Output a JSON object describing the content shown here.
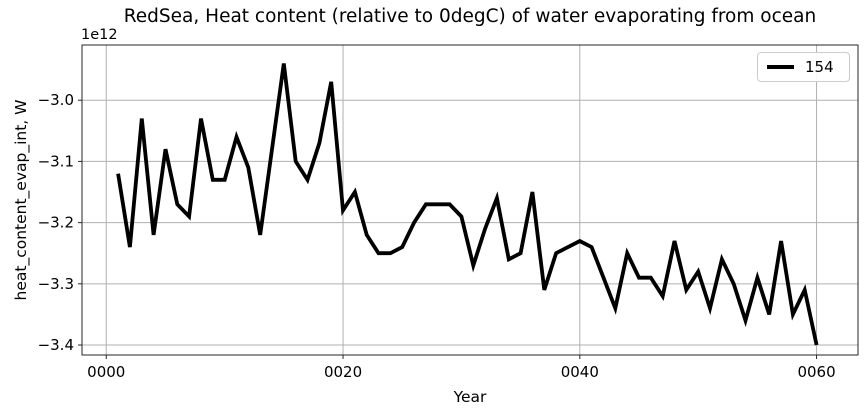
{
  "chart_data": {
    "type": "line",
    "title": "RedSea, Heat content (relative to 0degC) of water evaporating from ocean",
    "xlabel": "Year",
    "ylabel": "heat_content_evap_int, W",
    "offset_text": "1e12",
    "value_scale": "1e12",
    "grid": true,
    "legend": {
      "label": "154",
      "position": "upper right"
    },
    "line_color": "#000000",
    "grid_color": "#b0b0b0",
    "spine_color": "#262626",
    "x": [
      1,
      2,
      3,
      4,
      5,
      6,
      7,
      8,
      9,
      10,
      11,
      12,
      13,
      14,
      15,
      16,
      17,
      18,
      19,
      20,
      21,
      22,
      23,
      24,
      25,
      26,
      27,
      28,
      29,
      30,
      31,
      32,
      33,
      34,
      35,
      36,
      37,
      38,
      39,
      40,
      41,
      42,
      43,
      44,
      45,
      46,
      47,
      48,
      49,
      50,
      51,
      52,
      53,
      54,
      55,
      56,
      57,
      58,
      59,
      60
    ],
    "values": [
      -3.12,
      -3.24,
      -3.03,
      -3.22,
      -3.08,
      -3.17,
      -3.19,
      -3.03,
      -3.13,
      -3.13,
      -3.06,
      -3.11,
      -3.22,
      -3.08,
      -2.94,
      -3.1,
      -3.13,
      -3.07,
      -2.97,
      -3.18,
      -3.15,
      -3.22,
      -3.25,
      -3.25,
      -3.24,
      -3.2,
      -3.17,
      -3.17,
      -3.17,
      -3.19,
      -3.27,
      -3.21,
      -3.16,
      -3.26,
      -3.25,
      -3.15,
      -3.31,
      -3.25,
      -3.24,
      -3.23,
      -3.24,
      -3.29,
      -3.34,
      -3.25,
      -3.29,
      -3.29,
      -3.32,
      -3.23,
      -3.31,
      -3.28,
      -3.34,
      -3.26,
      -3.3,
      -3.36,
      -3.29,
      -3.35,
      -3.23,
      -3.35,
      -3.31,
      -3.4
    ],
    "xticks": [
      0,
      20,
      40,
      60
    ],
    "xtick_labels": [
      "0000",
      "0020",
      "0040",
      "0060"
    ],
    "yticks": [
      -3.0,
      -3.1,
      -3.2,
      -3.3,
      -3.4
    ],
    "ytick_labels": [
      "−3.0",
      "−3.1",
      "−3.2",
      "−3.3",
      "−3.4"
    ],
    "xlim": [
      -2.05,
      63.5
    ],
    "ylim": [
      -3.4163,
      -2.9098
    ]
  }
}
